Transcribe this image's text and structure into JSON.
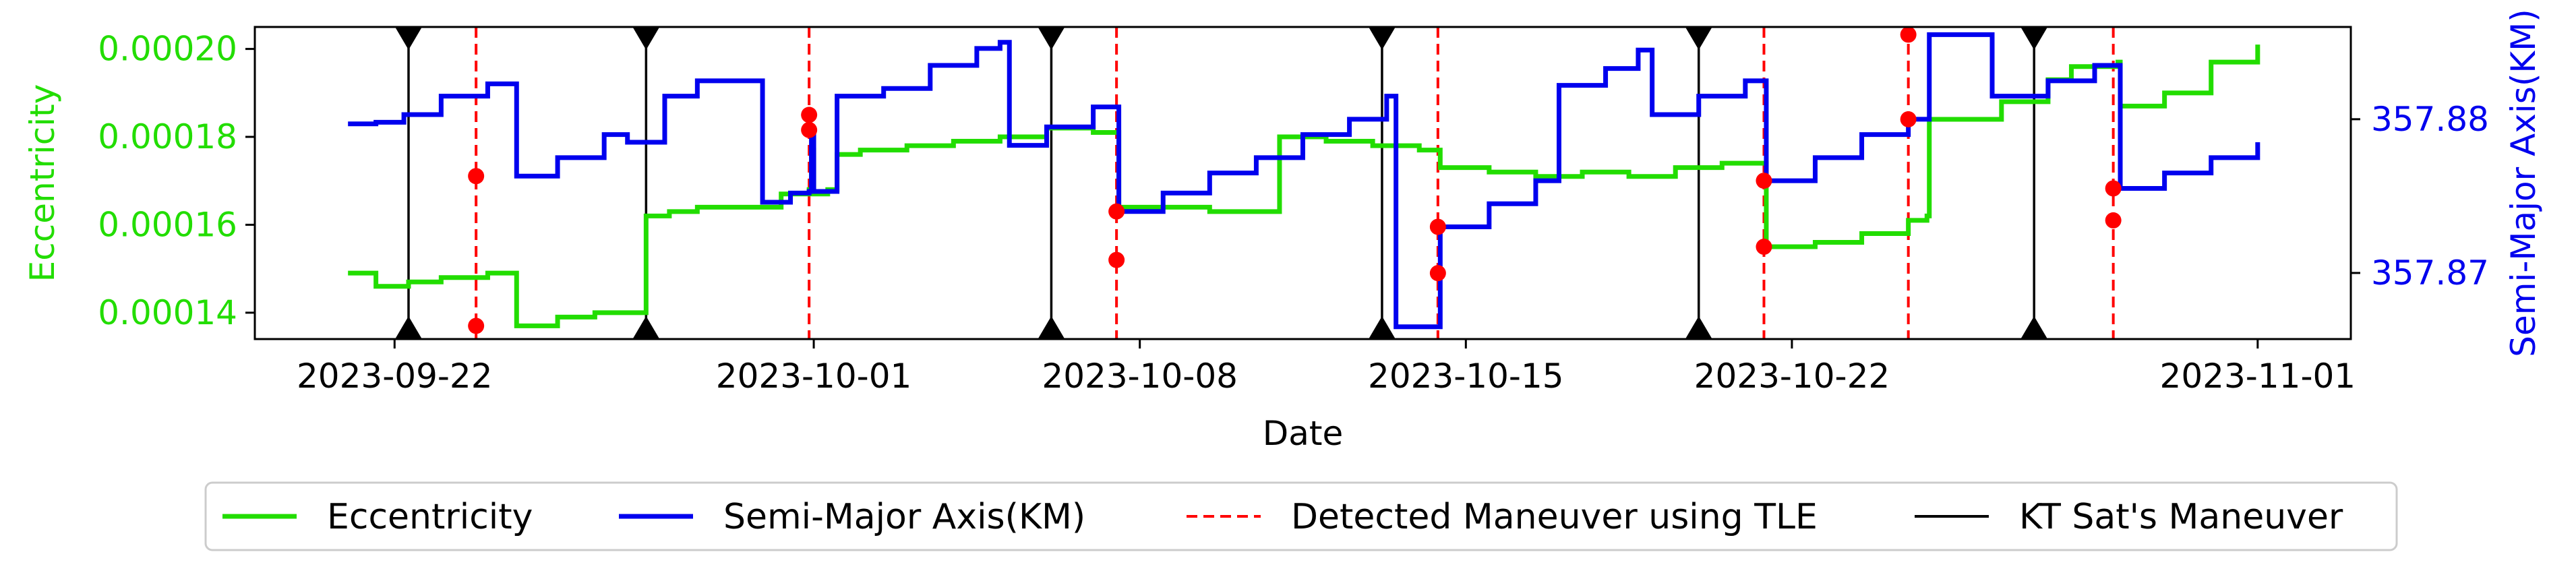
{
  "chart_data": {
    "type": "line",
    "xlabel": "Date",
    "ylabel_left": "Eccentricity",
    "ylabel_right": "Semi-Major Axis(KM)",
    "x_ticks": [
      "2023-09-22",
      "2023-10-01",
      "2023-10-08",
      "2023-10-15",
      "2023-10-22",
      "2023-11-01"
    ],
    "y_left_ticks": [
      "0.00014",
      "0.00016",
      "0.00018",
      "0.00020"
    ],
    "y_right_ticks": [
      "357.87",
      "357.88"
    ],
    "xlim": [
      "2023-09-19",
      "2023-11-03"
    ],
    "ylim_left": [
      0.000134,
      0.000205
    ],
    "ylim_right": [
      357.8657,
      357.886
    ],
    "legend_position": "bottom",
    "grid": false,
    "colors": {
      "eccentricity": "#22dd00",
      "semi_major_axis": "#0000ee",
      "detected": "#ff0000",
      "kt": "#000000",
      "marker": "#ff0000"
    },
    "series": [
      {
        "name": "Eccentricity",
        "axis": "left",
        "step": true,
        "points": [
          [
            "2023-09-21",
            0.000149
          ],
          [
            "2023-09-21.6",
            0.000146
          ],
          [
            "2023-09-22.3",
            0.000147
          ],
          [
            "2023-09-23",
            0.000148
          ],
          [
            "2023-09-24",
            0.000149
          ],
          [
            "2023-09-24.6",
            0.000149
          ],
          [
            "2023-09-24.62",
            0.000137
          ],
          [
            "2023-09-25.5",
            0.000139
          ],
          [
            "2023-09-26.3",
            0.00014
          ],
          [
            "2023-09-27",
            0.00014
          ],
          [
            "2023-09-27.4",
            0.000162
          ],
          [
            "2023-09-27.9",
            0.000163
          ],
          [
            "2023-09-28.5",
            0.000164
          ],
          [
            "2023-09-29",
            0.000164
          ],
          [
            "2023-09-30.3",
            0.000167
          ],
          [
            "2023-09-31",
            0.000167
          ],
          [
            "2023-10-01.3",
            0.000168
          ],
          [
            "2023-09-30.9",
            0.000168
          ],
          [
            "2023-09-30.95",
            0.000177
          ],
          [
            "2023-10-01.5",
            0.000176
          ],
          [
            "2023-10-02",
            0.000177
          ],
          [
            "2023-10-03",
            0.000178
          ],
          [
            "2023-10-04",
            0.000179
          ],
          [
            "2023-10-05",
            0.00018
          ],
          [
            "2023-10-06",
            0.000182
          ],
          [
            "2023-10-07",
            0.000181
          ],
          [
            "2023-10-07.5",
            0.000181
          ],
          [
            "2023-10-07.55",
            0.000164
          ],
          [
            "2023-10-08.5",
            0.000164
          ],
          [
            "2023-10-09.5",
            0.000163
          ],
          [
            "2023-10-10.5",
            0.000163
          ],
          [
            "2023-10-11",
            0.00018
          ],
          [
            "2023-10-12",
            0.000179
          ],
          [
            "2023-10-13",
            0.000178
          ],
          [
            "2023-10-14",
            0.000177
          ],
          [
            "2023-10-14.4",
            0.000177
          ],
          [
            "2023-10-14.45",
            0.000173
          ],
          [
            "2023-10-15.5",
            0.000172
          ],
          [
            "2023-10-16.5",
            0.000171
          ],
          [
            "2023-10-17.5",
            0.000172
          ],
          [
            "2023-10-18.5",
            0.000171
          ],
          [
            "2023-10-19.5",
            0.000173
          ],
          [
            "2023-10-20.5",
            0.000174
          ],
          [
            "2023-10-21.4",
            0.000174
          ],
          [
            "2023-10-21.45",
            0.000155
          ],
          [
            "2023-10-22.5",
            0.000156
          ],
          [
            "2023-10-23.5",
            0.000158
          ],
          [
            "2023-10-24.5",
            0.000161
          ],
          [
            "2023-10-24.9",
            0.000162
          ],
          [
            "2023-10-24.95",
            0.000184
          ],
          [
            "2023-10-25.8",
            0.000184
          ],
          [
            "2023-10-26.5",
            0.000188
          ],
          [
            "2023-10-27.5",
            0.000193
          ],
          [
            "2023-10-28",
            0.000196
          ],
          [
            "2023-10-29",
            0.000197
          ],
          [
            "2023-10-29",
            0.000197
          ],
          [
            "2023-10-29.05",
            0.000187
          ],
          [
            "2023-10-30",
            0.00019
          ],
          [
            "2023-10-31",
            0.000197
          ],
          [
            "2023-11-01",
            0.000201
          ]
        ]
      },
      {
        "name": "Semi-Major Axis(KM)",
        "axis": "right",
        "step": true,
        "points": [
          [
            "2023-09-21",
            357.8797
          ],
          [
            "2023-09-21.6",
            357.8798
          ],
          [
            "2023-09-22.2",
            357.8803
          ],
          [
            "2023-09-23",
            357.8815
          ],
          [
            "2023-09-24",
            357.8823
          ],
          [
            "2023-09-24.6",
            357.8823
          ],
          [
            "2023-09-24.62",
            357.8763
          ],
          [
            "2023-09-25.5",
            357.8775
          ],
          [
            "2023-09-26.5",
            357.879
          ],
          [
            "2023-09-27",
            357.8785
          ],
          [
            "2023-09-27.8",
            357.8815
          ],
          [
            "2023-09-28.5",
            357.8825
          ],
          [
            "2023-09-29.5",
            357.8825
          ],
          [
            "2023-09-29.9",
            357.8746
          ],
          [
            "2023-09-30.5",
            357.8752
          ],
          [
            "2023-09-31",
            357.8753
          ],
          [
            "2023-09-30.9",
            357.8753
          ],
          [
            "2023-09-30.95",
            357.8793
          ],
          [
            "2023-10-01.5",
            357.8815
          ],
          [
            "2023-10-02.5",
            357.882
          ],
          [
            "2023-10-03.5",
            357.8835
          ],
          [
            "2023-10-04.5",
            357.8846
          ],
          [
            "2023-10-05",
            357.885
          ],
          [
            "2023-10-05.2",
            357.8783
          ],
          [
            "2023-10-06",
            357.8795
          ],
          [
            "2023-10-07",
            357.8808
          ],
          [
            "2023-10-07.5",
            357.8808
          ],
          [
            "2023-10-07.55",
            357.874
          ],
          [
            "2023-10-08.5",
            357.8752
          ],
          [
            "2023-10-09.5",
            357.8765
          ],
          [
            "2023-10-10.5",
            357.8775
          ],
          [
            "2023-10-11.5",
            357.879
          ],
          [
            "2023-10-12.5",
            357.88
          ],
          [
            "2023-10-13.3",
            357.8815
          ],
          [
            "2023-10-13.5",
            357.8665
          ],
          [
            "2023-10-14.4",
            357.8665
          ],
          [
            "2023-10-14.45",
            357.873
          ],
          [
            "2023-10-15.5",
            357.8745
          ],
          [
            "2023-10-16.5",
            357.876
          ],
          [
            "2023-10-17",
            357.8822
          ],
          [
            "2023-10-18",
            357.8833
          ],
          [
            "2023-10-18.7",
            357.8845
          ],
          [
            "2023-10-19",
            357.8803
          ],
          [
            "2023-10-20",
            357.8815
          ],
          [
            "2023-10-21",
            357.8825
          ],
          [
            "2023-10-21.4",
            357.8825
          ],
          [
            "2023-10-21.45",
            357.876
          ],
          [
            "2023-10-22.5",
            357.8775
          ],
          [
            "2023-10-23.5",
            357.879
          ],
          [
            "2023-10-24.5",
            357.88
          ],
          [
            "2023-10-24.9",
            357.88
          ],
          [
            "2023-10-24.95",
            357.8855
          ],
          [
            "2023-10-26",
            357.8855
          ],
          [
            "2023-10-26.3",
            357.8815
          ],
          [
            "2023-10-27.5",
            357.8825
          ],
          [
            "2023-10-28.5",
            357.8835
          ],
          [
            "2023-10-29",
            357.8835
          ],
          [
            "2023-10-29.05",
            357.8755
          ],
          [
            "2023-10-30",
            357.8765
          ],
          [
            "2023-10-31",
            357.8775
          ],
          [
            "2023-11-01",
            357.8785
          ]
        ]
      }
    ],
    "detected_maneuvers": [
      "2023-09-23.75",
      "2023-09-30.9",
      "2023-10-07.5",
      "2023-10-14.4",
      "2023-10-21.4",
      "2023-10-24.5",
      "2023-10-28.9"
    ],
    "kt_maneuvers": [
      "2023-09-22.3",
      "2023-09-27.4",
      "2023-10-06.1",
      "2023-10-13.2",
      "2023-10-20.0",
      "2023-10-27.2"
    ],
    "markers_left": [
      [
        "2023-09-23.75",
        0.000137
      ],
      [
        "2023-09-30.9",
        0.000185
      ],
      [
        "2023-10-07.5",
        0.000152
      ],
      [
        "2023-10-14.4",
        0.000149
      ],
      [
        "2023-10-21.4",
        0.000155
      ],
      [
        "2023-10-24.5",
        0.000184
      ],
      [
        "2023-10-28.9",
        0.000161
      ]
    ],
    "markers_right": [
      [
        "2023-09-23.75",
        357.8763
      ],
      [
        "2023-09-30.9",
        357.8793
      ],
      [
        "2023-10-07.5",
        357.874
      ],
      [
        "2023-10-14.4",
        357.873
      ],
      [
        "2023-10-21.4",
        357.876
      ],
      [
        "2023-10-24.5",
        357.8855
      ],
      [
        "2023-10-28.9",
        357.8755
      ]
    ],
    "legend": [
      {
        "key": "eccentricity",
        "label": "Eccentricity",
        "style": "solid"
      },
      {
        "key": "semi_major_axis",
        "label": "Semi-Major Axis(KM)",
        "style": "solid"
      },
      {
        "key": "detected",
        "label": "Detected Maneuver using TLE",
        "style": "dashed"
      },
      {
        "key": "kt",
        "label": "KT Sat's Maneuver",
        "style": "solid"
      }
    ]
  }
}
